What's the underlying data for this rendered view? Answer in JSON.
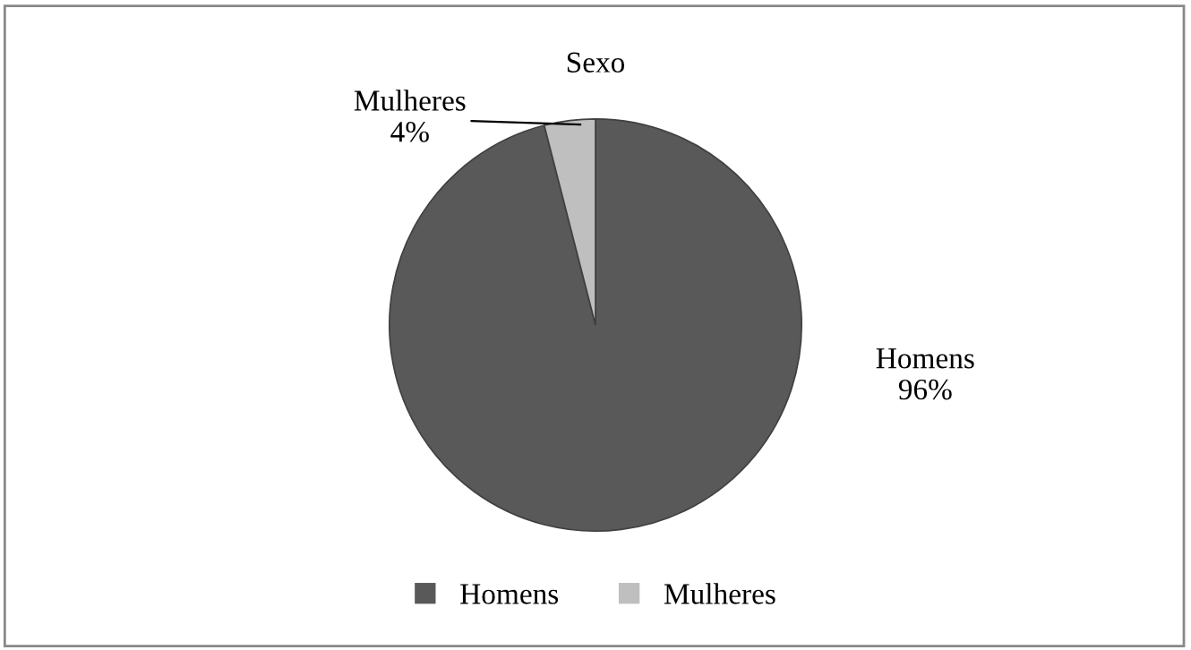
{
  "chart_data": {
    "type": "pie",
    "title": "Sexo",
    "categories": [
      "Homens",
      "Mulheres"
    ],
    "values": [
      96,
      4
    ],
    "colors": [
      "#595959",
      "#bfbfbf"
    ],
    "value_labels": [
      "96%",
      "4%"
    ],
    "legend": "bottom"
  }
}
